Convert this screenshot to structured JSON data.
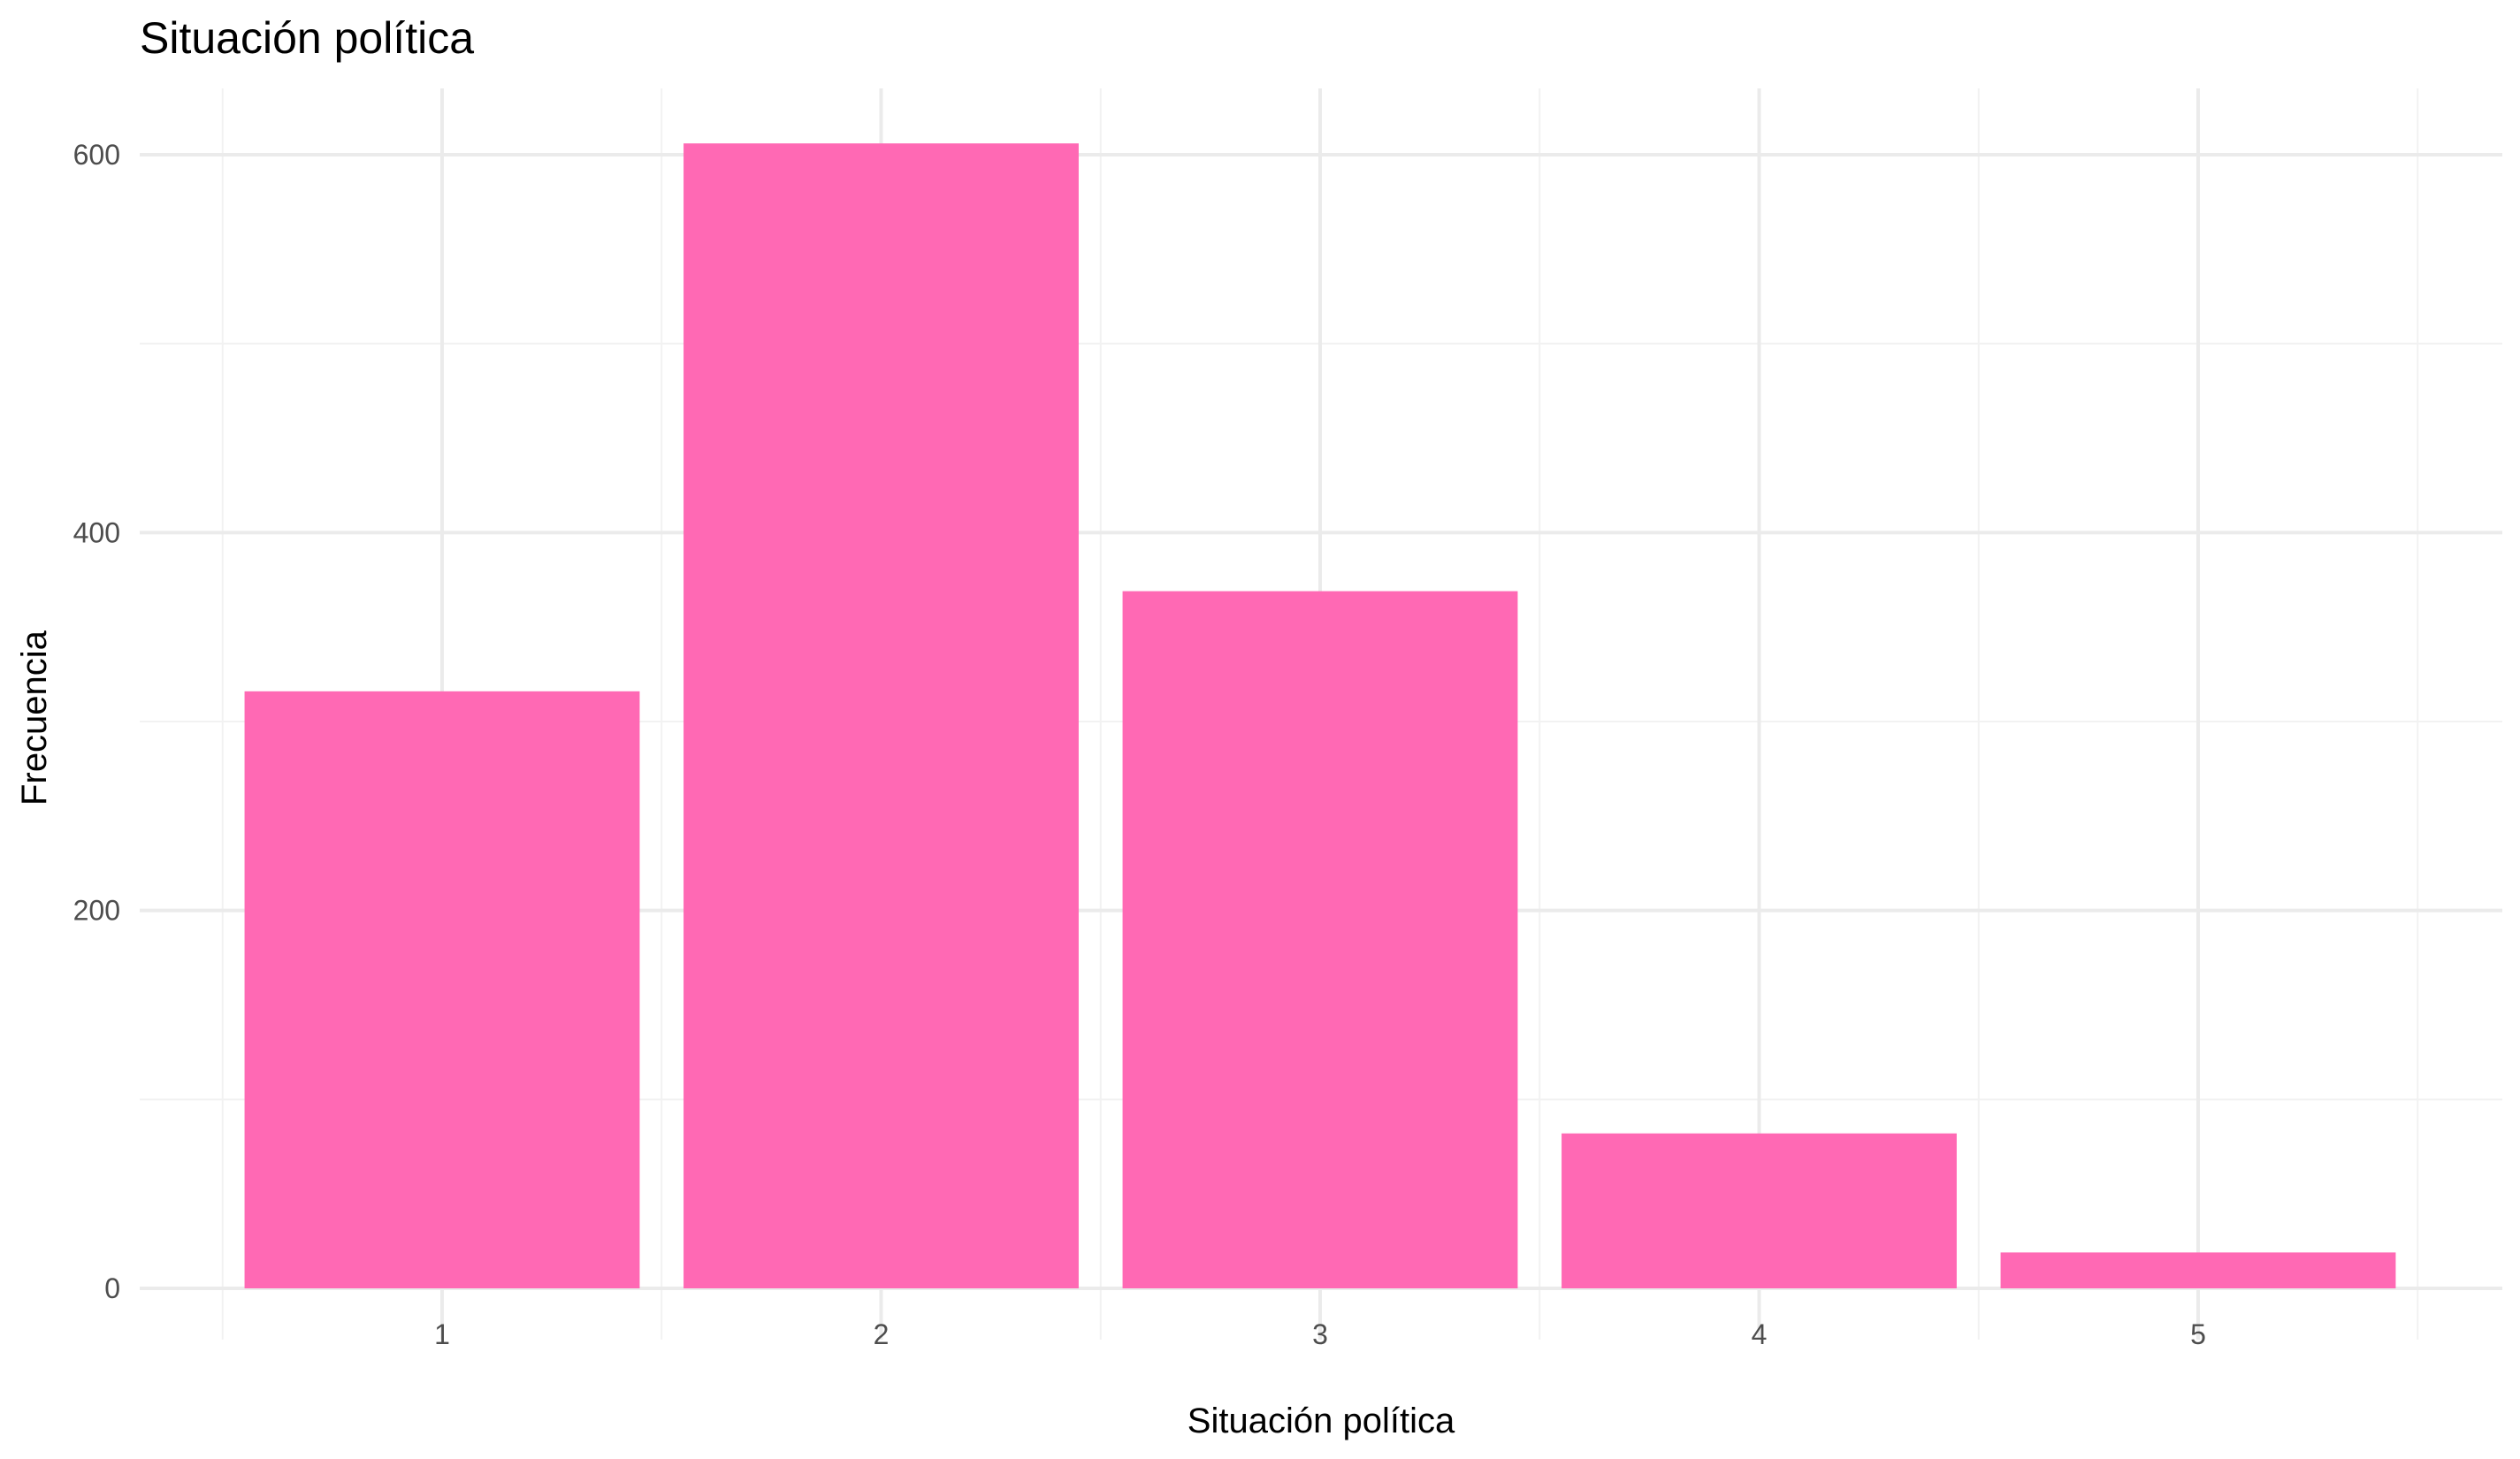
{
  "chart_data": {
    "type": "bar",
    "title": "Situación política",
    "xlabel": "Situación política",
    "ylabel": "Frecuencia",
    "categories": [
      "1",
      "2",
      "3",
      "4",
      "5"
    ],
    "values": [
      316,
      606,
      369,
      82,
      19
    ],
    "ylim": [
      0,
      630
    ],
    "yticks": [
      0,
      200,
      400,
      600
    ],
    "yticks_minor": [
      100,
      300,
      500
    ],
    "grid": true,
    "legend": "none",
    "colors": {
      "bar": "#FF69B4",
      "grid_major": "#EBEBEB",
      "grid_minor": "#F2F2F2",
      "tick_text": "#4D4D4D",
      "text": "#000000"
    }
  }
}
